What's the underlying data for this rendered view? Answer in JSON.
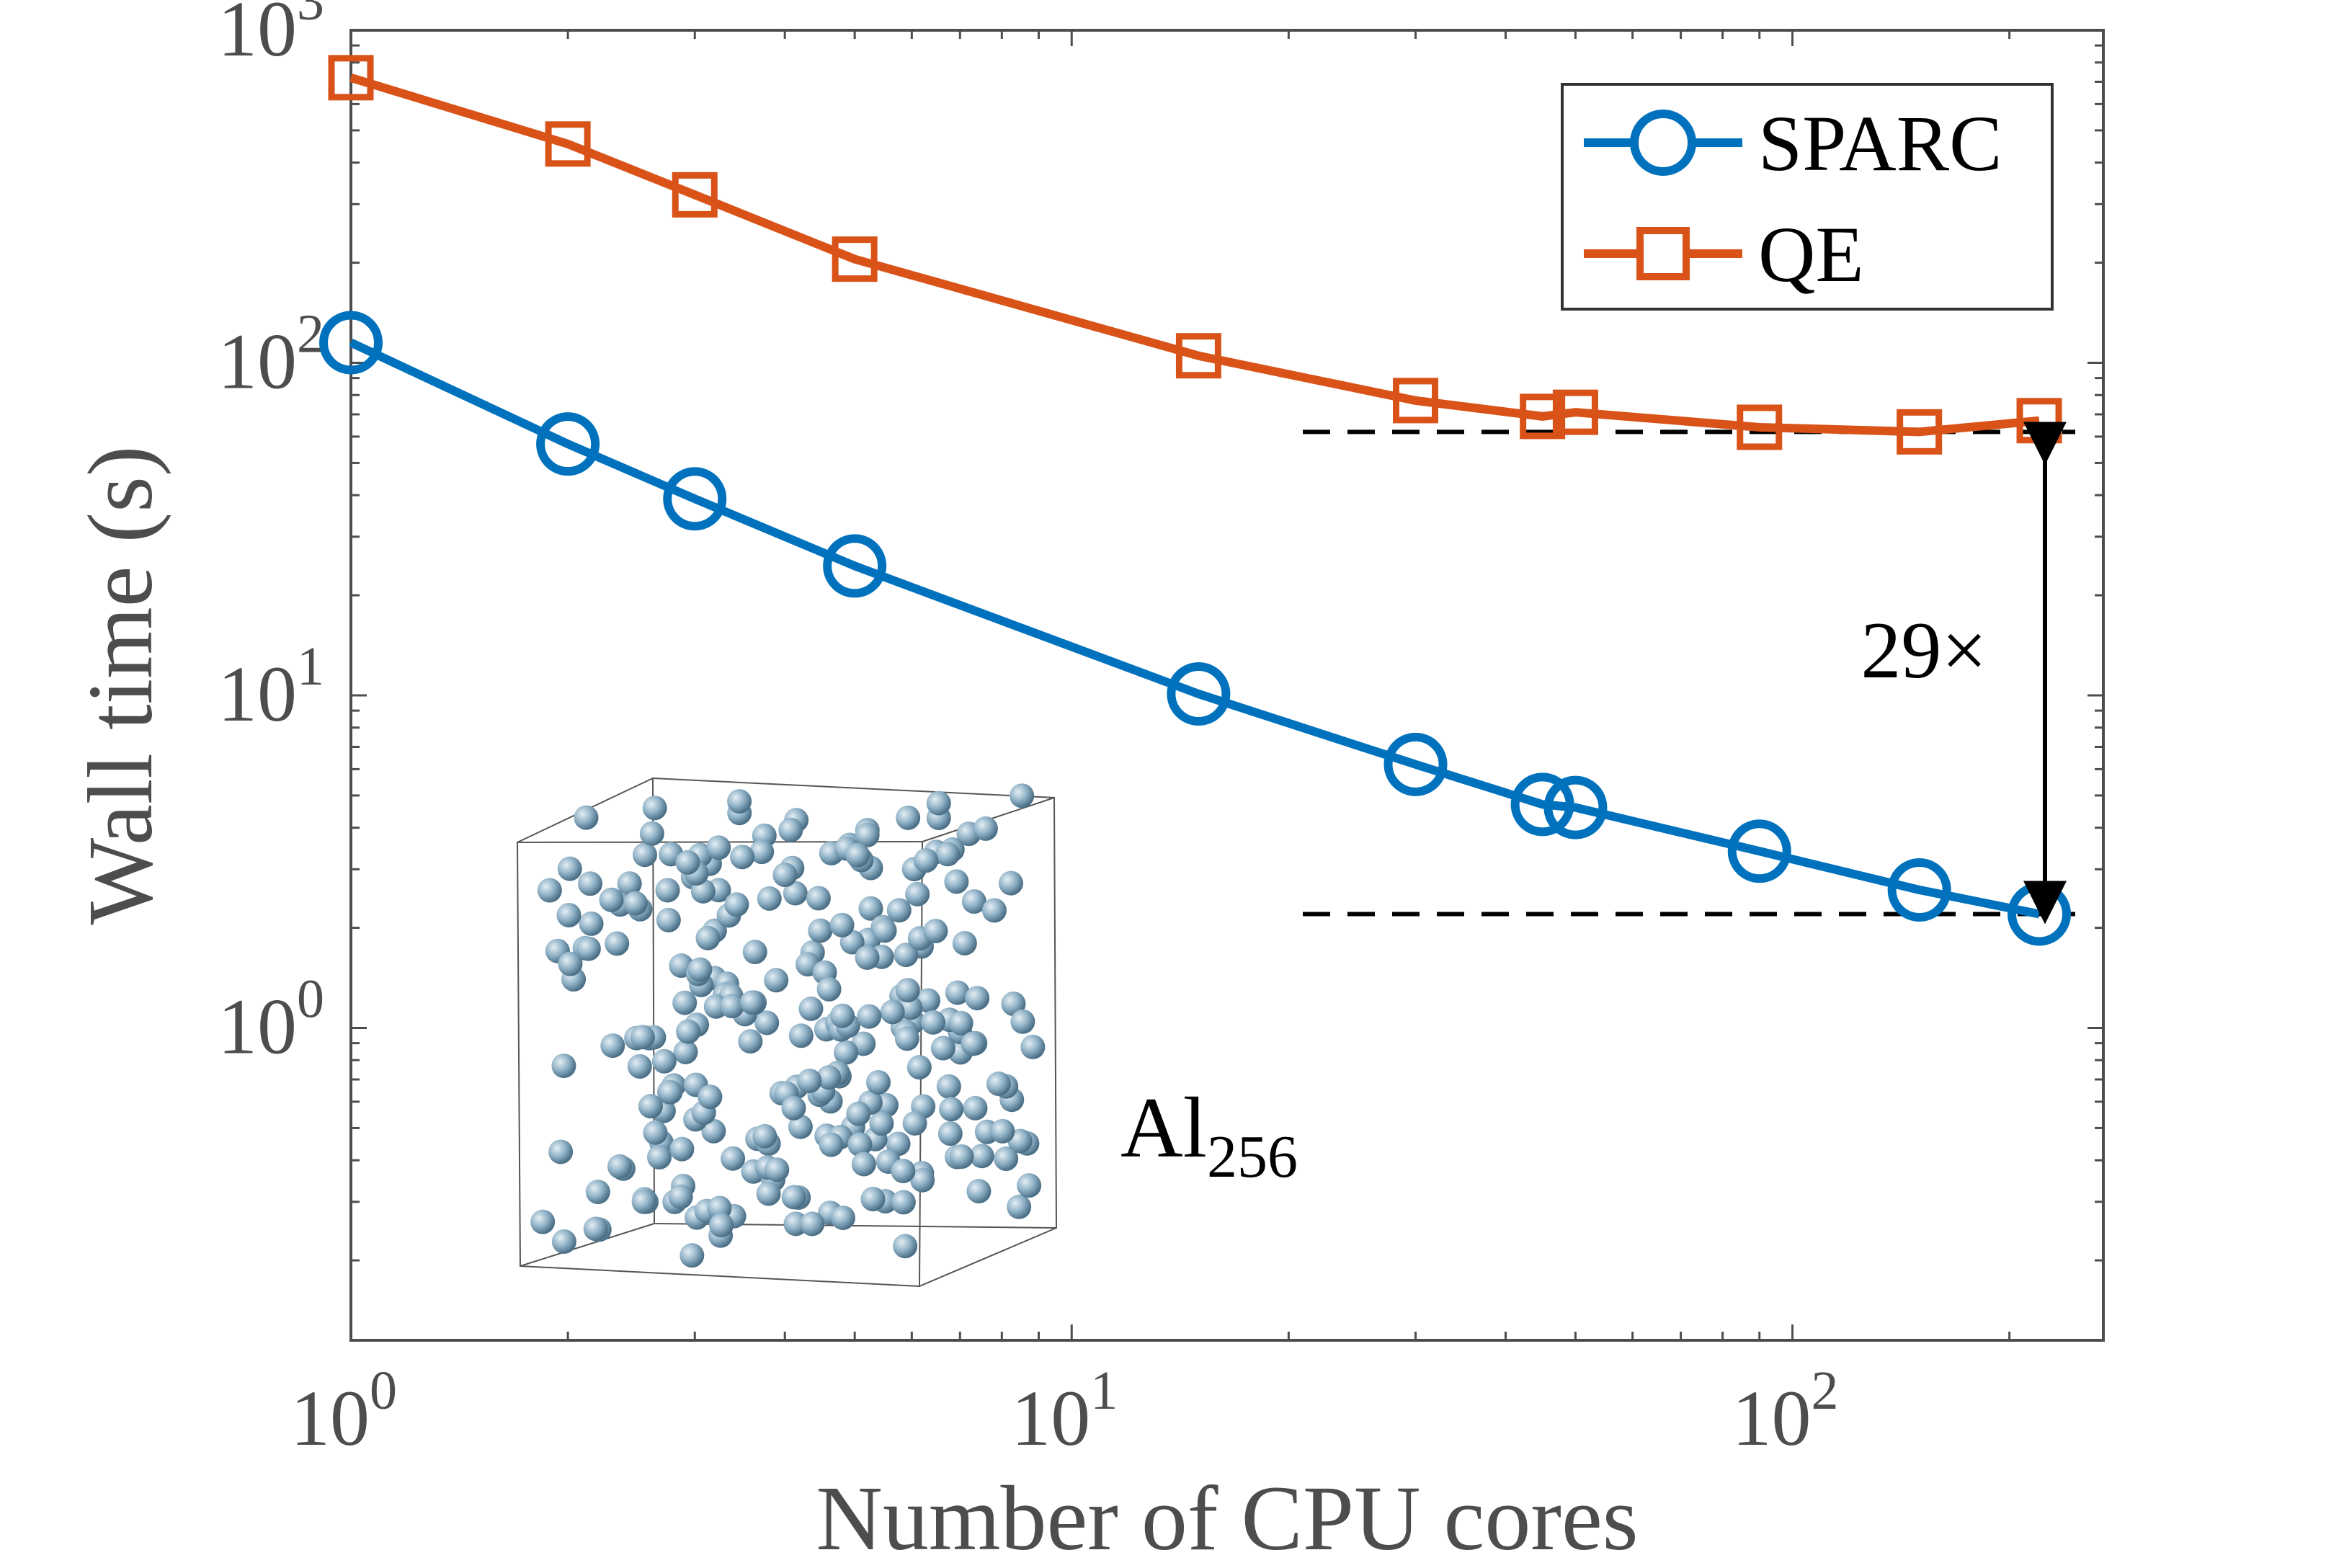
{
  "chart_data": {
    "type": "line",
    "xlabel": "Number of CPU cores",
    "ylabel": "Wall time (s)",
    "xscale": "log",
    "yscale": "log",
    "xlim": [
      1,
      270
    ],
    "ylim": [
      0.115,
      1000
    ],
    "x_ticks": [
      {
        "base": "10",
        "exp": "0",
        "value": 1
      },
      {
        "base": "10",
        "exp": "1",
        "value": 10
      },
      {
        "base": "10",
        "exp": "2",
        "value": 100
      }
    ],
    "y_ticks": [
      {
        "base": "10",
        "exp": "0",
        "value": 1
      },
      {
        "base": "10",
        "exp": "1",
        "value": 10
      },
      {
        "base": "10",
        "exp": "2",
        "value": 100
      },
      {
        "base": "10",
        "exp": "3",
        "value": 1000
      }
    ],
    "grid": false,
    "legend_position": "top-right",
    "series": [
      {
        "name": "SPARC",
        "color": "#0072bd",
        "marker": "circle",
        "x": [
          1,
          2,
          3,
          5,
          15,
          30,
          45,
          50,
          90,
          150,
          220
        ],
        "y": [
          115,
          57,
          39,
          24.5,
          10.1,
          6.2,
          4.7,
          4.6,
          3.4,
          2.6,
          2.2
        ]
      },
      {
        "name": "QE",
        "color": "#d95319",
        "marker": "square",
        "x": [
          1,
          2,
          3,
          5,
          15,
          30,
          45,
          50,
          90,
          150,
          220
        ],
        "y": [
          720,
          455,
          320,
          205,
          105,
          77,
          69,
          71,
          64,
          62,
          67
        ]
      }
    ],
    "annotations": {
      "ratio_label": "29×",
      "upper_reference": 62,
      "lower_reference": 2.2,
      "inset_label": "Al",
      "inset_subscript": "256"
    }
  }
}
